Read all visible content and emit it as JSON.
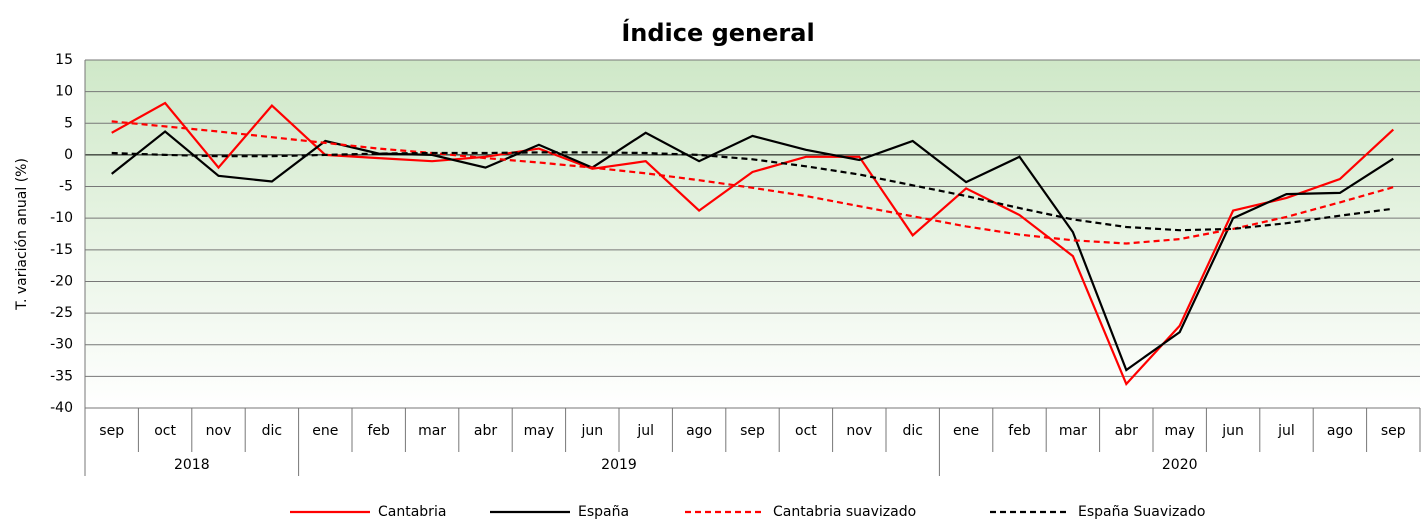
{
  "chart_data": {
    "type": "line",
    "title": "Índice general",
    "y_label": "T. variación anual (%)",
    "categories": [
      "sep",
      "oct",
      "nov",
      "dic",
      "ene",
      "feb",
      "mar",
      "abr",
      "may",
      "jun",
      "jul",
      "ago",
      "sep",
      "oct",
      "nov",
      "dic",
      "ene",
      "feb",
      "mar",
      "abr",
      "may",
      "jun",
      "jul",
      "ago",
      "sep"
    ],
    "year_groups": [
      {
        "label": "2018",
        "count": 4
      },
      {
        "label": "2019",
        "count": 12
      },
      {
        "label": "2020",
        "count": 9
      }
    ],
    "series": [
      {
        "name": "Cantabria",
        "color": "#ff0000",
        "dashed": false,
        "values": [
          3.5,
          8.2,
          -2,
          7.8,
          0,
          -0.5,
          -1,
          -0.3,
          1,
          -2.2,
          -1,
          -8.8,
          -2.7,
          -0.3,
          -0.3,
          -12.7,
          -5.3,
          -9.5,
          -16,
          -36.2,
          -27,
          -8.8,
          -6.8,
          -3.8,
          4
        ]
      },
      {
        "name": "España",
        "color": "#000000",
        "dashed": false,
        "values": [
          -3,
          3.7,
          -3.3,
          -4.2,
          2.2,
          0.2,
          0,
          -2,
          1.6,
          -2,
          3.5,
          -1,
          3,
          0.8,
          -0.8,
          2.2,
          -4.3,
          -0.3,
          -12.2,
          -34,
          -28,
          -10,
          -6.2,
          -6,
          -0.6
        ]
      },
      {
        "name": "Cantabria suavizado",
        "color": "#ff0000",
        "dashed": true,
        "values": [
          5.3,
          4.5,
          3.7,
          2.8,
          1.9,
          1,
          0.3,
          -0.5,
          -1.2,
          -2,
          -2.9,
          -4,
          -5.2,
          -6.5,
          -8.1,
          -9.7,
          -11.3,
          -12.6,
          -13.5,
          -14,
          -13.3,
          -11.7,
          -9.8,
          -7.5,
          -5.1
        ]
      },
      {
        "name": "España Suavizado",
        "color": "#000000",
        "dashed": true,
        "values": [
          0.3,
          0,
          -0.2,
          -0.2,
          0,
          0.2,
          0.3,
          0.3,
          0.4,
          0.4,
          0.3,
          0,
          -0.7,
          -1.8,
          -3.1,
          -4.8,
          -6.5,
          -8.4,
          -10.2,
          -11.4,
          -11.9,
          -11.7,
          -10.8,
          -9.6,
          -8.5
        ]
      }
    ],
    "ylim": [
      -40,
      15
    ],
    "yticks": [
      -40,
      -35,
      -30,
      -25,
      -20,
      -15,
      -10,
      -5,
      0,
      5,
      10,
      15
    ],
    "grid": true,
    "legend": "bottom"
  }
}
